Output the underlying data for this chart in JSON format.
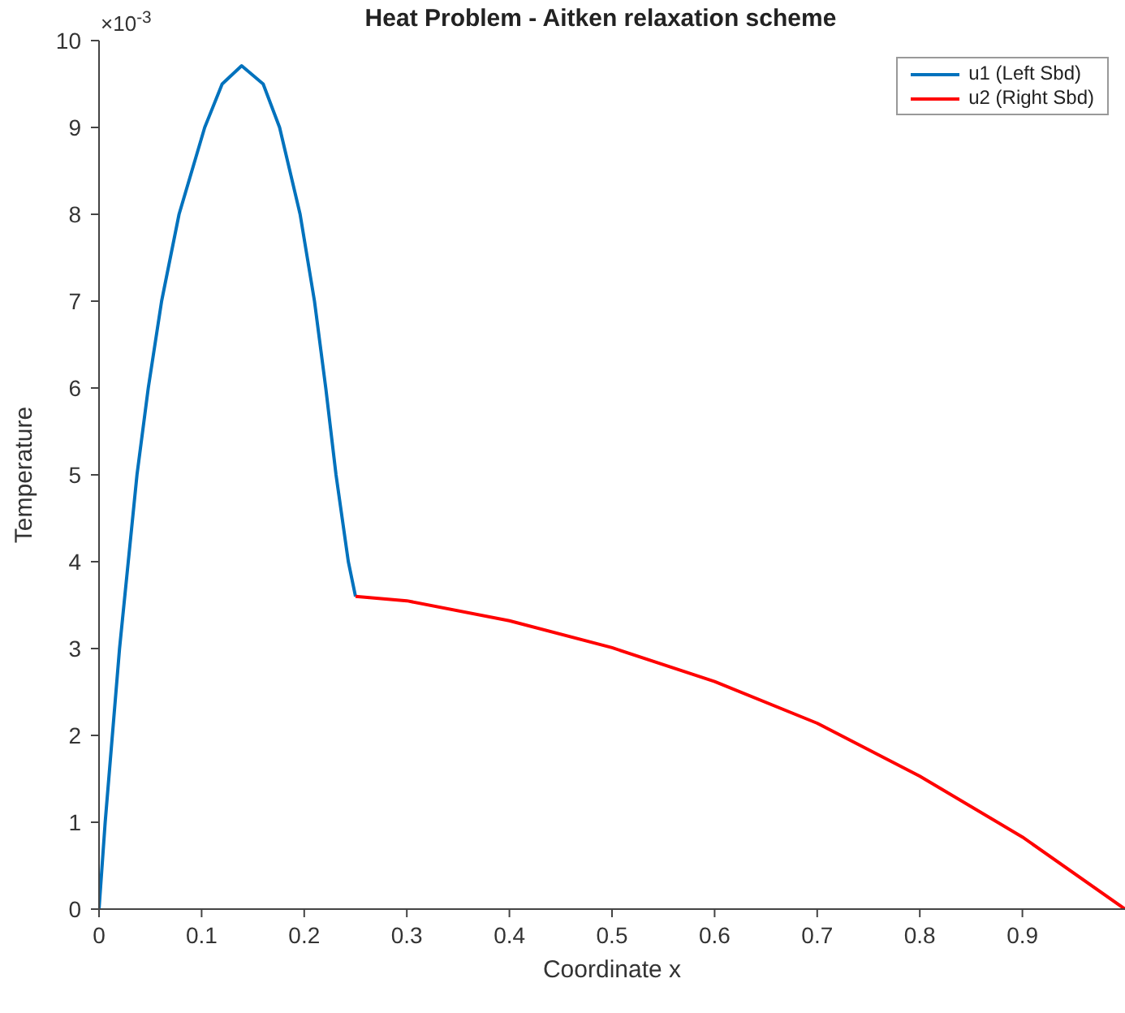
{
  "chart_data": {
    "type": "line",
    "title": "Heat Problem - Aitken relaxation scheme",
    "xlabel": "Coordinate x",
    "ylabel": "Temperature",
    "annotations": [
      "×10$^{-3}$"
    ],
    "series": [
      {
        "name": "u1 (Left Sbd)",
        "color": "#0072bd",
        "x": [
          0,
          0.006,
          0.02,
          0.037,
          0.048,
          0.061,
          0.078,
          0.103,
          0.12,
          0.139,
          0.16,
          0.176,
          0.196,
          0.21,
          0.221,
          0.231,
          0.243,
          0.25
        ],
        "values": [
          0,
          1,
          3,
          5,
          6,
          7,
          8,
          9,
          9.5,
          9.71,
          9.5,
          9,
          8,
          7,
          6,
          5,
          4,
          3.6
        ]
      },
      {
        "name": "u2 (Right Sbd)",
        "color": "#ff0000",
        "x": [
          0.25,
          0.3,
          0.4,
          0.5,
          0.6,
          0.7,
          0.8,
          0.9,
          1
        ],
        "values": [
          3.6,
          3.55,
          3.32,
          3.01,
          2.62,
          2.14,
          1.53,
          0.83,
          0
        ]
      }
    ],
    "xlim": [
      0,
      1
    ],
    "xticks": [
      0,
      0.1,
      0.2,
      0.3,
      0.4,
      0.5,
      0.6,
      0.7,
      0.8,
      0.9
    ],
    "ylim": [
      0,
      10
    ],
    "yticks": [
      0,
      1,
      2,
      3,
      4,
      5,
      6,
      7,
      8,
      9,
      10
    ],
    "legend": "top right",
    "grid": false,
    "marker": "none",
    "line_style": "solid"
  }
}
